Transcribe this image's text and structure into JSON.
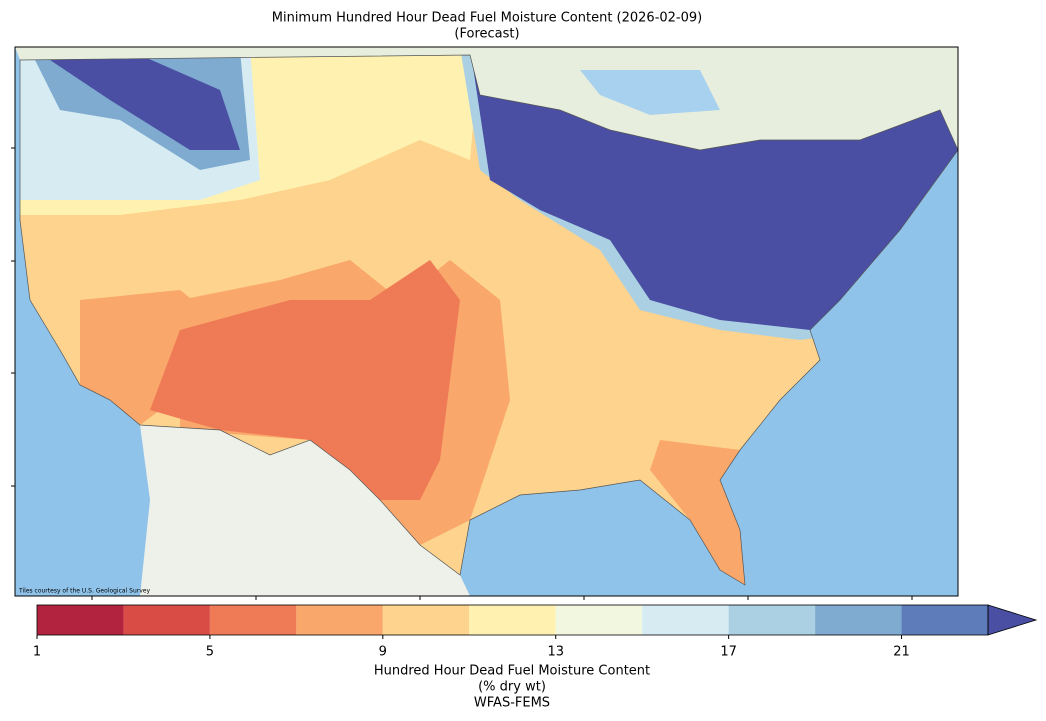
{
  "chart_data": {
    "type": "map",
    "title": "Minimum Hundred Hour Dead Fuel Moisture Content (2026-02-09)",
    "subtitle": "(Forecast)",
    "attribution": "Tiles courtesy of the U.S. Geological Survey",
    "colorbar": {
      "label": "Hundred Hour Dead Fuel Moisture Content",
      "units": "(% dry wt)",
      "source": "WFAS-FEMS",
      "bounds": [
        1,
        3,
        5,
        7,
        9,
        11,
        13,
        15,
        17,
        19,
        21,
        23
      ],
      "colors": [
        "#b2233f",
        "#d94c45",
        "#ef7a56",
        "#f9a76a",
        "#fdd38d",
        "#fff2b0",
        "#f2f8e0",
        "#d6ecf2",
        "#abd0e3",
        "#7fabd0",
        "#5e7cba"
      ],
      "extend": "max",
      "extend_color": "#4a4fa3",
      "lim": [
        1,
        23
      ],
      "ticks": [
        1,
        5,
        9,
        13,
        17,
        21
      ]
    }
  }
}
